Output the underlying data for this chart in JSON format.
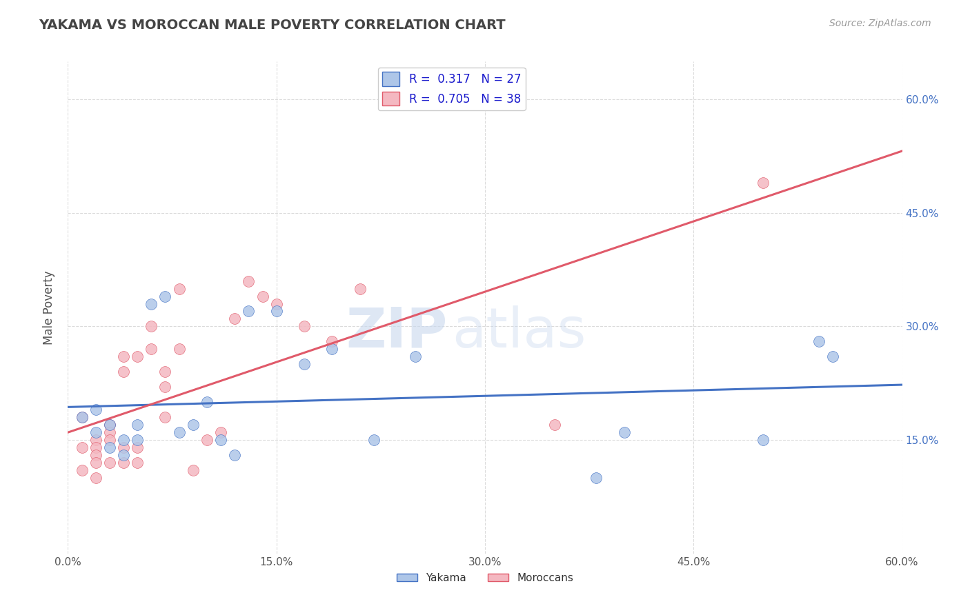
{
  "title": "YAKAMA VS MOROCCAN MALE POVERTY CORRELATION CHART",
  "source_text": "Source: ZipAtlas.com",
  "xlabel": "",
  "ylabel": "Male Poverty",
  "xlim": [
    0.0,
    0.6
  ],
  "ylim": [
    0.0,
    0.65
  ],
  "xtick_labels": [
    "0.0%",
    "15.0%",
    "30.0%",
    "45.0%",
    "60.0%"
  ],
  "xtick_positions": [
    0.0,
    0.15,
    0.3,
    0.45,
    0.6
  ],
  "ytick_labels": [
    "15.0%",
    "30.0%",
    "45.0%",
    "60.0%"
  ],
  "ytick_positions": [
    0.15,
    0.3,
    0.45,
    0.6
  ],
  "grid_color": "#cccccc",
  "background_color": "#ffffff",
  "watermark_zip": "ZIP",
  "watermark_atlas": "atlas",
  "yakama_color": "#aec6e8",
  "moroccan_color": "#f4b8c1",
  "yakama_line_color": "#4472c4",
  "moroccan_line_color": "#e05a6a",
  "legend_r_yakama": "0.317",
  "legend_n_yakama": "27",
  "legend_r_moroccan": "0.705",
  "legend_n_moroccan": "38",
  "yakama_x": [
    0.01,
    0.02,
    0.02,
    0.03,
    0.03,
    0.04,
    0.04,
    0.05,
    0.05,
    0.06,
    0.07,
    0.08,
    0.09,
    0.1,
    0.11,
    0.12,
    0.13,
    0.15,
    0.17,
    0.19,
    0.22,
    0.25,
    0.38,
    0.4,
    0.5,
    0.54,
    0.55
  ],
  "yakama_y": [
    0.18,
    0.19,
    0.16,
    0.17,
    0.14,
    0.15,
    0.13,
    0.17,
    0.15,
    0.33,
    0.34,
    0.16,
    0.17,
    0.2,
    0.15,
    0.13,
    0.32,
    0.32,
    0.25,
    0.27,
    0.15,
    0.26,
    0.1,
    0.16,
    0.15,
    0.28,
    0.26
  ],
  "moroccan_x": [
    0.01,
    0.01,
    0.01,
    0.02,
    0.02,
    0.02,
    0.02,
    0.02,
    0.03,
    0.03,
    0.03,
    0.03,
    0.04,
    0.04,
    0.04,
    0.04,
    0.05,
    0.05,
    0.05,
    0.06,
    0.06,
    0.07,
    0.07,
    0.07,
    0.08,
    0.08,
    0.09,
    0.1,
    0.11,
    0.12,
    0.13,
    0.14,
    0.15,
    0.17,
    0.19,
    0.21,
    0.35,
    0.5
  ],
  "moroccan_y": [
    0.18,
    0.14,
    0.11,
    0.15,
    0.14,
    0.13,
    0.12,
    0.1,
    0.17,
    0.16,
    0.15,
    0.12,
    0.26,
    0.24,
    0.14,
    0.12,
    0.26,
    0.14,
    0.12,
    0.3,
    0.27,
    0.24,
    0.22,
    0.18,
    0.35,
    0.27,
    0.11,
    0.15,
    0.16,
    0.31,
    0.36,
    0.34,
    0.33,
    0.3,
    0.28,
    0.35,
    0.17,
    0.49
  ]
}
